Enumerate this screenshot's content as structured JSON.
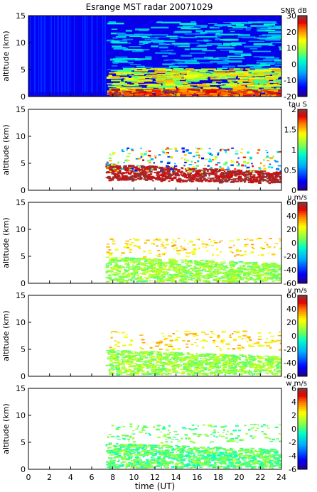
{
  "title": "Esrange MST radar 20071029",
  "xlabel": "time (UT)",
  "chart_data": [
    {
      "type": "heatmap",
      "quantity": "SNR",
      "colorbar_label": "SNR dB",
      "ylabel": "altitude (km)",
      "xlim": [
        0,
        24
      ],
      "ylim": [
        0,
        15
      ],
      "xticks": [
        0,
        2,
        4,
        6,
        8,
        10,
        12,
        14,
        16,
        18,
        20,
        22,
        24
      ],
      "yticks": [
        0,
        5,
        10,
        15
      ],
      "clim": [
        -20,
        30
      ],
      "cticks": [
        -20,
        -10,
        0,
        10,
        20,
        30
      ],
      "data_gap": {
        "x_from": 7.4,
        "x_to": 24,
        "note_label": ""
      },
      "features": [
        {
          "name": "background",
          "x": [
            0,
            24
          ],
          "y": [
            0,
            15
          ],
          "level_db": -14
        },
        {
          "name": "boundary layer",
          "x": [
            7.4,
            24
          ],
          "y": [
            0,
            1.5
          ],
          "level_db": 25
        },
        {
          "name": "lower troposphere",
          "x": [
            7.4,
            24
          ],
          "y": [
            1.5,
            5
          ],
          "level_db": 12
        },
        {
          "name": "tropopause layer",
          "x": [
            7.4,
            24
          ],
          "y": [
            5,
            12
          ],
          "level_db": 2
        }
      ]
    },
    {
      "type": "heatmap",
      "quantity": "tau",
      "colorbar_label": "tau S",
      "ylabel": "altitude (km)",
      "xlim": [
        0,
        24
      ],
      "ylim": [
        0,
        15
      ],
      "xticks": [
        0,
        2,
        4,
        6,
        8,
        10,
        12,
        14,
        16,
        18,
        20,
        22,
        24
      ],
      "yticks": [
        0,
        5,
        10,
        15
      ],
      "clim": [
        0,
        2
      ],
      "cticks": [
        0,
        0.5,
        1,
        1.5,
        2
      ],
      "features": [
        {
          "name": "main layer",
          "x": [
            7.3,
            24
          ],
          "y_start": [
            2,
            5
          ],
          "y_end": [
            1.5,
            3.5
          ],
          "value": 2
        },
        {
          "name": "upper patches",
          "x": [
            7.3,
            24
          ],
          "y": [
            4,
            7.5
          ],
          "value": 1.1
        }
      ]
    },
    {
      "type": "heatmap",
      "quantity": "u",
      "colorbar_label": "u m/s",
      "ylabel": "altitude (km)",
      "xlim": [
        0,
        24
      ],
      "ylim": [
        0,
        15
      ],
      "xticks": [
        0,
        2,
        4,
        6,
        8,
        10,
        12,
        14,
        16,
        18,
        20,
        22,
        24
      ],
      "yticks": [
        0,
        5,
        10,
        15
      ],
      "clim": [
        -60,
        60
      ],
      "cticks": [
        -60,
        -40,
        -20,
        0,
        20,
        40,
        60
      ],
      "features": [
        {
          "name": "lower winds",
          "x": [
            7.3,
            24
          ],
          "y": [
            0.5,
            5
          ],
          "value_ms": 10
        },
        {
          "name": "upper patches",
          "x": [
            7.3,
            24
          ],
          "y": [
            5,
            10
          ],
          "value_ms": 30
        }
      ]
    },
    {
      "type": "heatmap",
      "quantity": "v",
      "colorbar_label": "v m/s",
      "ylabel": "altitude (km)",
      "xlim": [
        0,
        24
      ],
      "ylim": [
        0,
        15
      ],
      "xticks": [
        0,
        2,
        4,
        6,
        8,
        10,
        12,
        14,
        16,
        18,
        20,
        22,
        24
      ],
      "yticks": [
        0,
        5,
        10,
        15
      ],
      "clim": [
        -60,
        60
      ],
      "cticks": [
        -60,
        -40,
        -20,
        0,
        20,
        40,
        60
      ],
      "features": [
        {
          "name": "lower winds",
          "x": [
            7.3,
            24
          ],
          "y": [
            0.5,
            5
          ],
          "value_ms": 8
        },
        {
          "name": "upper patches",
          "x": [
            7.3,
            24
          ],
          "y": [
            5,
            10
          ],
          "value_ms": 25
        }
      ]
    },
    {
      "type": "heatmap",
      "quantity": "w",
      "colorbar_label": "w m/s",
      "ylabel": "altitude (km)",
      "xlim": [
        0,
        24
      ],
      "ylim": [
        0,
        15
      ],
      "xticks": [
        0,
        2,
        4,
        6,
        8,
        10,
        12,
        14,
        16,
        18,
        20,
        22,
        24
      ],
      "yticks": [
        0,
        5,
        10,
        15
      ],
      "clim": [
        -6,
        6
      ],
      "cticks": [
        -6,
        -4,
        -2,
        0,
        2,
        4,
        6
      ],
      "features": [
        {
          "name": "lower layer",
          "x": [
            7.3,
            24
          ],
          "y": [
            0.3,
            5
          ],
          "value_ms": 0
        },
        {
          "name": "upper patches",
          "x": [
            7.3,
            24
          ],
          "y": [
            5,
            10
          ],
          "value_ms": 0.3
        }
      ]
    }
  ]
}
